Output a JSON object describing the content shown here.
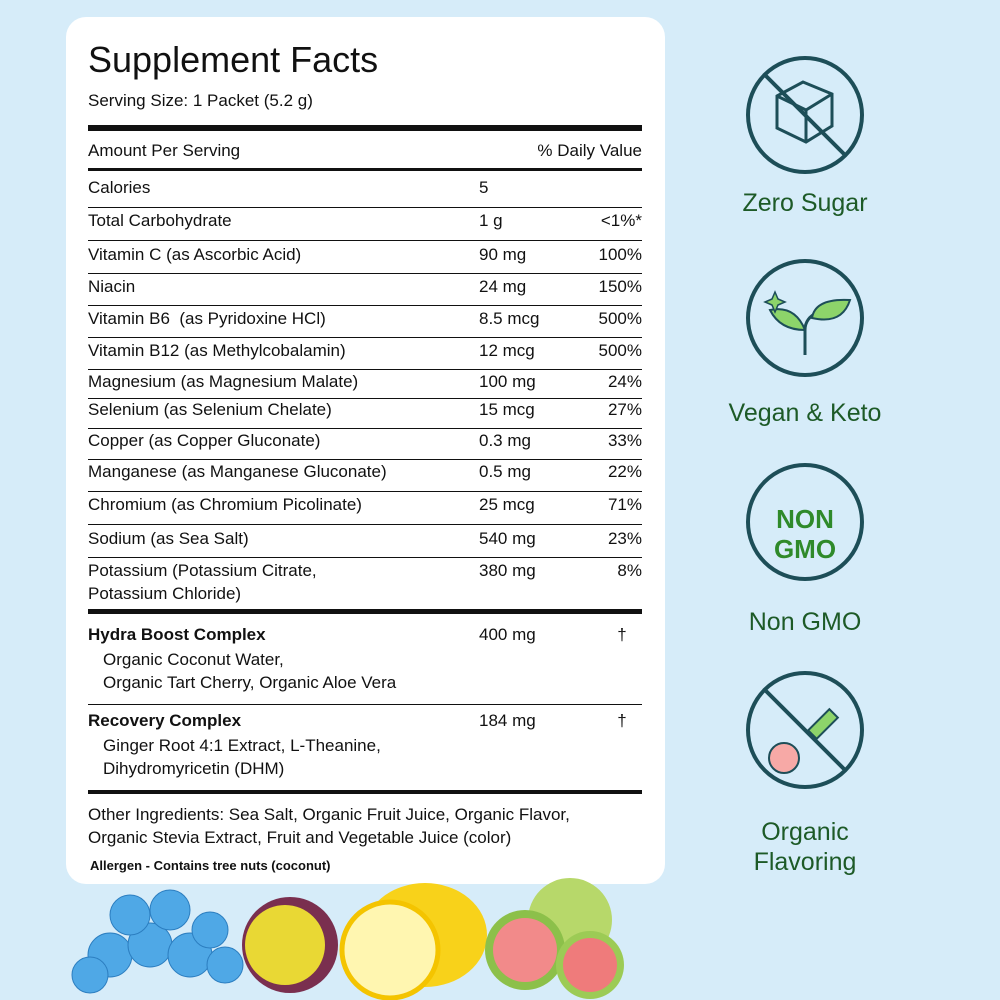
{
  "facts": {
    "title": "Supplement Facts",
    "serving_size": "Serving Size: 1 Packet (5.2 g)",
    "header": [
      "Amount Per Serving",
      "% Daily Value"
    ],
    "rows": [
      {
        "name": [
          "Calories"
        ],
        "amount": "5"
      },
      {
        "name": [
          "Total Carbohydrate"
        ],
        "amount": "1 g",
        "dv": "<1%*"
      },
      {
        "name": [
          "Vitamin C (as Ascorbic Acid)"
        ],
        "amount": "90 mg",
        "dv": "100%"
      },
      {
        "name": [
          "Niacin"
        ],
        "amount": "24 mg",
        "dv": "150%"
      },
      {
        "name": [
          "Vitamin B6  (as Pyridoxine HCl)"
        ],
        "amount": "8.5 mcg",
        "dv": "500%"
      },
      {
        "name": [
          "Vitamin B12 (as Methylcobalamin)"
        ],
        "amount": "12 mcg",
        "dv": "500%"
      },
      {
        "name": [
          "Magnesium (as Magnesium Malate)"
        ],
        "amount": "100 mg",
        "dv": "24%"
      },
      {
        "name": [
          "Selenium (as Selenium Chelate)"
        ],
        "amount": "15 mcg",
        "dv": "27%"
      },
      {
        "name": [
          "Copper (as Copper Gluconate)"
        ],
        "amount": "0.3 mg",
        "dv": "33%"
      },
      {
        "name": [
          "Manganese (as Manganese Gluconate)"
        ],
        "amount": "0.5 mg",
        "dv": "22%"
      },
      {
        "name": [
          "Chromium (as Chromium Picolinate)"
        ],
        "amount": "25 mcg",
        "dv": "71%"
      },
      {
        "name": [
          "Sodium (as Sea Salt)"
        ],
        "amount": "540 mg",
        "dv": "23%"
      },
      {
        "name": [
          "Potassium (Potassium Citrate,",
          "Potassium Chloride)"
        ],
        "amount": "380 mg",
        "dv": "8%"
      }
    ],
    "complexes": [
      {
        "name": "Hydra Boost Complex",
        "amount": "400 mg",
        "dv": "†",
        "ingredients": [
          "Organic Coconut Water,",
          "Organic Tart Cherry, Organic Aloe Vera"
        ]
      },
      {
        "name": "Recovery Complex",
        "amount": "184 mg",
        "dv": "†",
        "ingredients": [
          "Ginger Root 4:1 Extract, L-Theanine,",
          "Dihydromyricetin (DHM)"
        ]
      }
    ],
    "other_ingredients": [
      "Other Ingredients: Sea Salt, Organic Fruit Juice, Organic Flavor,",
      "Organic Stevia Extract, Fruit and Vegetable Juice (color)"
    ],
    "allergen": "Allergen - Contains tree nuts (coconut)"
  },
  "badges": [
    {
      "label": [
        "Zero Sugar"
      ]
    },
    {
      "label": [
        "Vegan & Keto"
      ]
    },
    {
      "icon_text": [
        "NON",
        "GMO"
      ],
      "label": [
        "Non GMO"
      ]
    },
    {
      "label": [
        "Organic",
        "Flavoring"
      ]
    }
  ]
}
